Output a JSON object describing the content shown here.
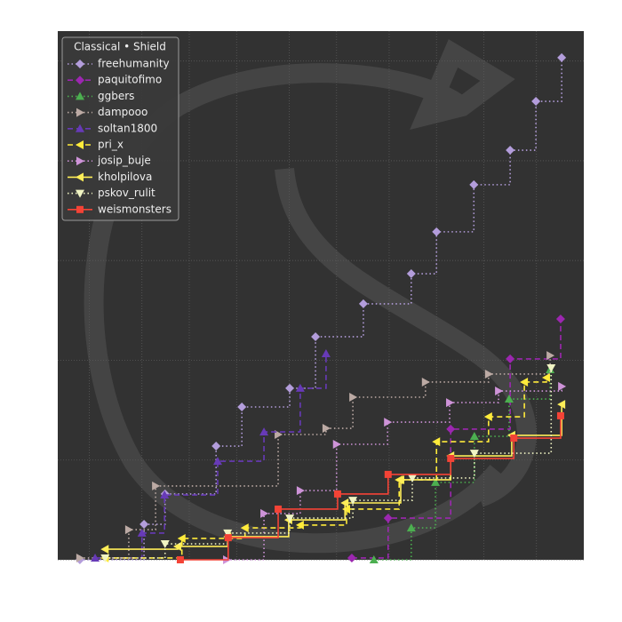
{
  "chart_data": {
    "type": "line",
    "step": true,
    "xlim": [
      0,
      100
    ],
    "ylim": [
      0,
      2650
    ],
    "xticks": [
      6,
      16,
      25,
      34,
      44,
      53,
      63,
      72,
      81,
      91
    ],
    "yticks": [
      0,
      500,
      1000,
      1500,
      2000,
      2500
    ],
    "grid": true,
    "legend": "upper left",
    "legend_title": "Classical • Shield",
    "series": [
      {
        "name": "freehumanity",
        "color": "#b39ddb",
        "dash": "dotted",
        "marker": "diamond",
        "x": [
          4.2,
          16.4,
          20.4,
          30.1,
          35.0,
          44.1,
          49.0,
          58.1,
          67.2,
          72.0,
          79.1,
          86.0,
          90.9,
          95.8
        ],
        "values": [
          0,
          178,
          330,
          570,
          766,
          860,
          1118,
          1283,
          1434,
          1644,
          1880,
          2053,
          2298,
          2517
        ]
      },
      {
        "name": "paquitofimo",
        "color": "#9c27b0",
        "dash": "dashed",
        "marker": "diamond",
        "x": [
          55.9,
          62.8,
          74.7,
          86.0,
          95.6
        ],
        "values": [
          9,
          209,
          655,
          1007,
          1207
        ]
      },
      {
        "name": "ggbers",
        "color": "#4caf50",
        "dash": "dotted",
        "marker": "triangle-up",
        "x": [
          60.1,
          67.2,
          71.8,
          79.2,
          85.8,
          93.6
        ],
        "values": [
          0,
          160,
          388,
          619,
          806,
          953
        ]
      },
      {
        "name": "dampooo",
        "color": "#bcaaa4",
        "dash": "dotted",
        "marker": "triangle-right",
        "x": [
          4.2,
          13.5,
          18.6,
          41.9,
          51.0,
          56.1,
          69.9,
          81.9,
          93.6
        ],
        "values": [
          9,
          151,
          370,
          628,
          659,
          815,
          891,
          931,
          1024
        ]
      },
      {
        "name": "soltan1800",
        "color": "#673ab7",
        "dash": "dashed",
        "marker": "triangle-up",
        "x": [
          7.1,
          16.0,
          20.3,
          30.4,
          39.2,
          46.1,
          51.0
        ],
        "values": [
          9,
          134,
          325,
          494,
          641,
          860,
          1033
        ]
      },
      {
        "name": "pri_x",
        "color": "#ffeb3b",
        "dash": "dashed",
        "marker": "triangle-left",
        "x": [
          9.0,
          23.6,
          35.6,
          46.1,
          54.9,
          64.9,
          72.0,
          81.9,
          88.7,
          92.9
        ],
        "values": [
          9,
          107,
          160,
          174,
          254,
          401,
          592,
          717,
          891,
          913
        ]
      },
      {
        "name": "josip_buje",
        "color": "#ce93d8",
        "dash": "dotted",
        "marker": "triangle-right",
        "x": [
          32.1,
          39.2,
          46.1,
          53.0,
          62.7,
          74.5,
          83.8,
          95.8
        ],
        "values": [
          0,
          232,
          347,
          579,
          690,
          788,
          846,
          869
        ]
      },
      {
        "name": "kholpilova",
        "color": "#ffee58",
        "dash": "solid",
        "marker": "triangle-left",
        "x": [
          9.0,
          22.8,
          32.3,
          43.9,
          54.6,
          65.2,
          74.7,
          86.3,
          95.8
        ],
        "values": [
          53,
          67,
          116,
          200,
          285,
          401,
          521,
          624,
          779
        ]
      },
      {
        "name": "pskov_rulit",
        "color": "#f0f4c3",
        "dash": "dotted",
        "marker": "triangle-down",
        "x": [
          9.0,
          20.4,
          32.3,
          44.1,
          56.1,
          67.4,
          79.2,
          93.8
        ],
        "values": [
          9,
          80,
          134,
          209,
          298,
          410,
          534,
          962
        ]
      },
      {
        "name": "weismonsters",
        "color": "#f44336",
        "dash": "solid",
        "marker": "square",
        "x": [
          23.3,
          32.4,
          41.9,
          53.2,
          62.8,
          74.7,
          86.7,
          95.6
        ],
        "values": [
          0,
          111,
          254,
          330,
          428,
          508,
          610,
          722
        ]
      }
    ]
  }
}
